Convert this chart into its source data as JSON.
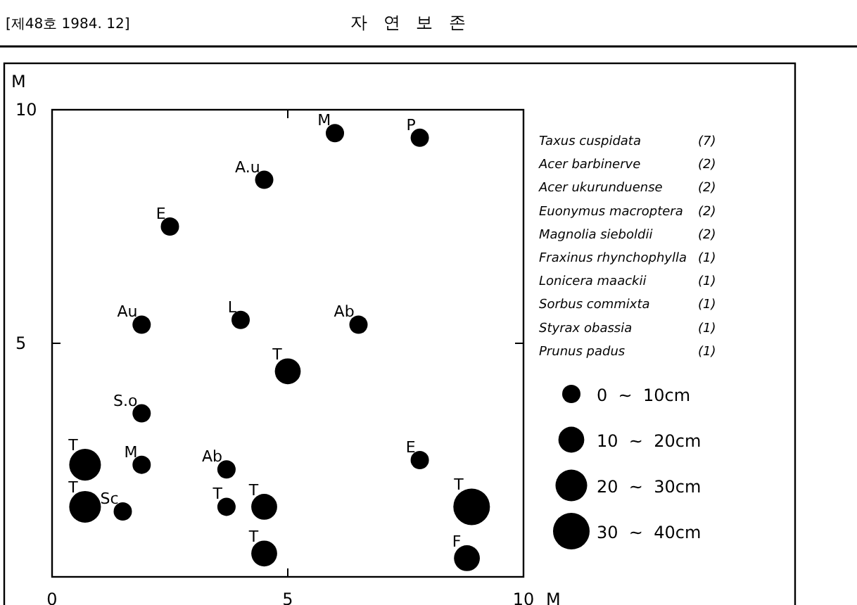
{
  "chart_data": {
    "type": "bubble",
    "color": "#000000",
    "xlabel": "M",
    "ylabel": "M",
    "xlim": [
      0,
      10
    ],
    "xticks": [
      0,
      5,
      10
    ],
    "ylim": [
      0,
      10
    ],
    "yticks": [
      5,
      10
    ],
    "x": [
      6.0,
      7.8,
      4.5,
      2.5,
      1.9,
      4.0,
      6.5,
      5.0,
      1.9,
      0.7,
      1.9,
      3.7,
      7.8,
      0.7,
      1.5,
      3.7,
      4.5,
      4.5,
      8.9,
      8.8
    ],
    "values": [
      9.5,
      9.4,
      8.5,
      7.5,
      5.4,
      5.5,
      5.4,
      4.4,
      3.5,
      2.4,
      2.4,
      2.3,
      2.5,
      1.5,
      1.4,
      1.5,
      1.5,
      0.5,
      1.5,
      0.4
    ],
    "sizes": [
      10,
      10,
      10,
      10,
      10,
      10,
      10,
      20,
      10,
      30,
      10,
      10,
      10,
      30,
      10,
      10,
      20,
      20,
      40,
      20
    ],
    "size_legend": [
      {
        "value": 10,
        "label": "0  ~  10cm"
      },
      {
        "value": 20,
        "label": "10  ~  20cm"
      },
      {
        "value": 30,
        "label": "20  ~  30cm"
      },
      {
        "value": 40,
        "label": "30  ~  40cm"
      }
    ],
    "annotations": [
      "[제48호  1984. 12]",
      "자   연   보   존",
      "Taxus cuspidata (7)",
      "Acer barbinerve (2)",
      "Acer ukurunduense (2)",
      "Euonymus macroptera (2)",
      "Magnolia sieboldii (2)",
      "Fraxinus rhynchophylla (1)",
      "Lonicera maackii (1)",
      "Sorbus commixta (1)",
      "Styrax obassia (1)",
      "Prunus padus (1)",
      {
        "text": "M",
        "x": 6.0,
        "y": 9.5
      },
      {
        "text": "P",
        "x": 7.8,
        "y": 9.4
      },
      {
        "text": "A.u",
        "x": 4.5,
        "y": 8.5
      },
      {
        "text": "E",
        "x": 2.5,
        "y": 7.5
      },
      {
        "text": "Au",
        "x": 1.9,
        "y": 5.4
      },
      {
        "text": "L",
        "x": 4.0,
        "y": 5.5
      },
      {
        "text": "Ab",
        "x": 6.5,
        "y": 5.4
      },
      {
        "text": "T",
        "x": 5.0,
        "y": 4.4
      },
      {
        "text": "S.o",
        "x": 1.9,
        "y": 3.5
      },
      {
        "text": "T",
        "x": 0.7,
        "y": 2.4
      },
      {
        "text": "M",
        "x": 1.9,
        "y": 2.4
      },
      {
        "text": "Ab",
        "x": 3.7,
        "y": 2.3
      },
      {
        "text": "E",
        "x": 7.8,
        "y": 2.5
      },
      {
        "text": "T",
        "x": 0.7,
        "y": 1.5
      },
      {
        "text": "Sc",
        "x": 1.5,
        "y": 1.4
      },
      {
        "text": "T",
        "x": 3.7,
        "y": 1.5
      },
      {
        "text": "T",
        "x": 4.5,
        "y": 1.5
      },
      {
        "text": "T",
        "x": 4.5,
        "y": 0.5
      },
      {
        "text": "T",
        "x": 8.9,
        "y": 1.5
      },
      {
        "text": "F",
        "x": 8.8,
        "y": 0.4
      }
    ]
  }
}
